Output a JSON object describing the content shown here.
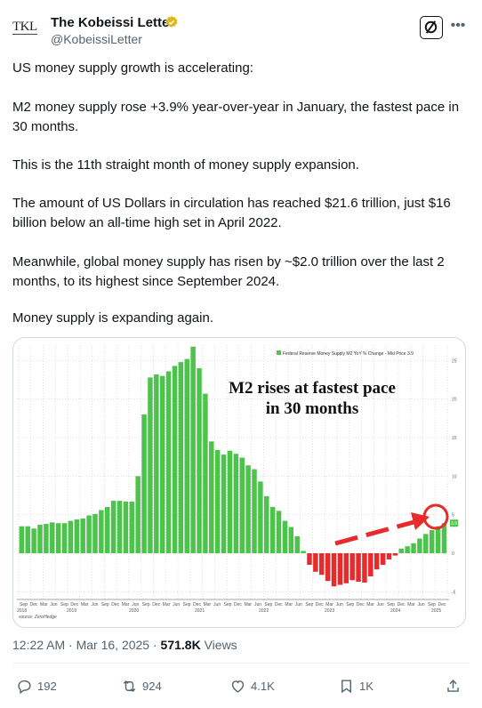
{
  "author": {
    "avatar_text": "TKL",
    "name": "The Kobeissi Letter",
    "handle": "@KobeissiLetter"
  },
  "tweet": {
    "paragraphs": [
      "US money supply growth is accelerating:",
      "M2 money supply rose +3.9% year-over-year in January, the fastest pace in 30 months.",
      "This is the 11th straight month of money supply expansion.",
      "The amount of US Dollars in circulation has reached $21.6 trillion, just $16 billion below an all-time high set in April 2022.",
      "Meanwhile, global money supply has risen by ~$2.0 trillion over the last 2 months, to its highest since September 2024.",
      "Money supply is expanding again."
    ],
    "timestamp": "12:22 AM · Mar 16, 2025",
    "views_count": "571.8K",
    "views_label": "Views"
  },
  "actions": {
    "replies": "192",
    "reposts": "924",
    "likes": "4.1K",
    "bookmarks": "1K"
  },
  "colors": {
    "positive_bar": "#4cc44c",
    "negative_bar": "#e52b2b",
    "arrow": "#e52b2b",
    "grid": "#d8d8d8"
  },
  "icons": [
    "verified-badge-icon",
    "grok-icon",
    "more-icon",
    "reply-icon",
    "repost-icon",
    "like-icon",
    "bookmark-icon",
    "share-icon"
  ],
  "chart_data": {
    "type": "bar",
    "legend": "Federal Reserve Money Supply M2 YoY % Change - Mid Price 3.9",
    "annotation": [
      "M2 rises at fastest pace",
      "in 30 months"
    ],
    "source": "source: ZeroHedge",
    "ylim": [
      -6,
      27
    ],
    "yticks": [
      25,
      20,
      15,
      10,
      5,
      0,
      -5
    ],
    "last_value_label": "3.9",
    "x_tick_labels": [
      "Sep",
      "Dec",
      "Mar",
      "Jun",
      "Sep",
      "Dec",
      "Mar",
      "Jun",
      "Sep",
      "Dec",
      "Mar",
      "Jun",
      "Sep",
      "Dec",
      "Mar",
      "Jun",
      "Sep",
      "Dec",
      "Mar",
      "Jun",
      "Sep",
      "Dec",
      "Mar",
      "Jun",
      "Sep",
      "Dec",
      "Mar",
      "Jun",
      "Sep",
      "Dec",
      "Mar",
      "Jun",
      "Sep",
      "Dec",
      "Mar",
      "Jun",
      "Sep",
      "Dec",
      "Mar",
      "Jun",
      "Sep",
      "Dec"
    ],
    "x_year_labels": [
      "2018",
      "2019",
      "2020",
      "2021",
      "2022",
      "2023",
      "2024",
      "2025"
    ],
    "series": [
      {
        "values": [
          3.5,
          3.5,
          3.2,
          3.7,
          3.8,
          4.0,
          3.9,
          3.9,
          4.2,
          4.4,
          4.5,
          4.9,
          5.1,
          5.6,
          6.0,
          6.8,
          6.8,
          6.7,
          6.7,
          10.0,
          18.0,
          22.8,
          23.2,
          23.0,
          23.6,
          24.3,
          24.8,
          25.2,
          26.8,
          24.0,
          20.7,
          14.5,
          13.4,
          12.8,
          13.3,
          12.9,
          12.4,
          11.4,
          10.9,
          9.3,
          7.4,
          6.0,
          5.5,
          4.2,
          3.4,
          2.2,
          0.3,
          -1.5,
          -2.4,
          -2.8,
          -3.6,
          -4.3,
          -4.1,
          -3.9,
          -3.5,
          -3.7,
          -3.8,
          -3.0,
          -2.1,
          -1.5,
          -0.8,
          -0.3,
          0.6,
          0.9,
          1.3,
          1.9,
          2.5,
          3.0,
          3.5,
          3.9
        ]
      }
    ]
  }
}
